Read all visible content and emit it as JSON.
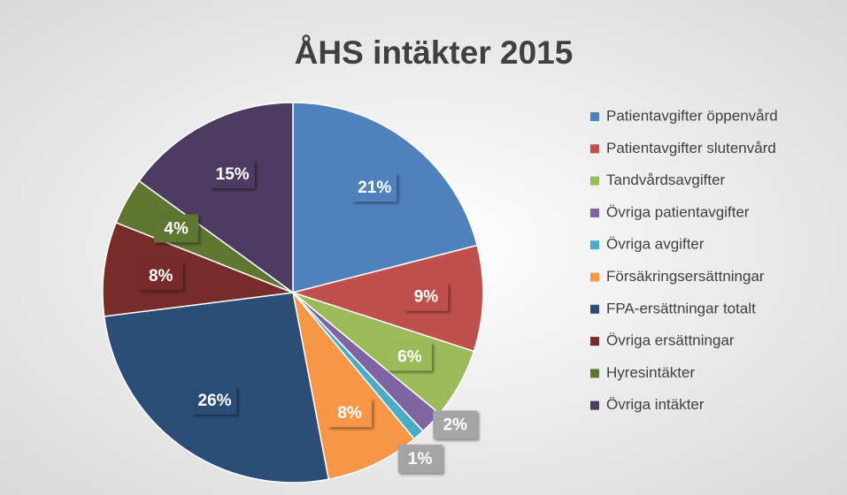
{
  "chart_data": {
    "type": "pie",
    "title": "ÅHS intäkter 2015",
    "categories": [
      "Patientavgifter öppenvård",
      "Patientavgifter slutenvård",
      "Tandvårdsavgifter",
      "Övriga patientavgifter",
      "Övriga avgifter",
      "Försäkringsersättningar",
      "FPA-ersättningar totalt",
      "Övriga ersättningar",
      "Hyresintäkter",
      "Övriga intäkter"
    ],
    "values": [
      21,
      9,
      6,
      2,
      1,
      8,
      26,
      8,
      4,
      15
    ],
    "value_labels": [
      "21%",
      "9%",
      "6%",
      "2%",
      "1%",
      "8%",
      "26%",
      "8%",
      "4%",
      "15%"
    ],
    "colors": [
      "#4f81bd",
      "#c0504d",
      "#9bbb59",
      "#8064a2",
      "#4bacc6",
      "#f79646",
      "#2c4d75",
      "#772c2a",
      "#5f7530",
      "#4d3b62"
    ],
    "legend": "right"
  }
}
